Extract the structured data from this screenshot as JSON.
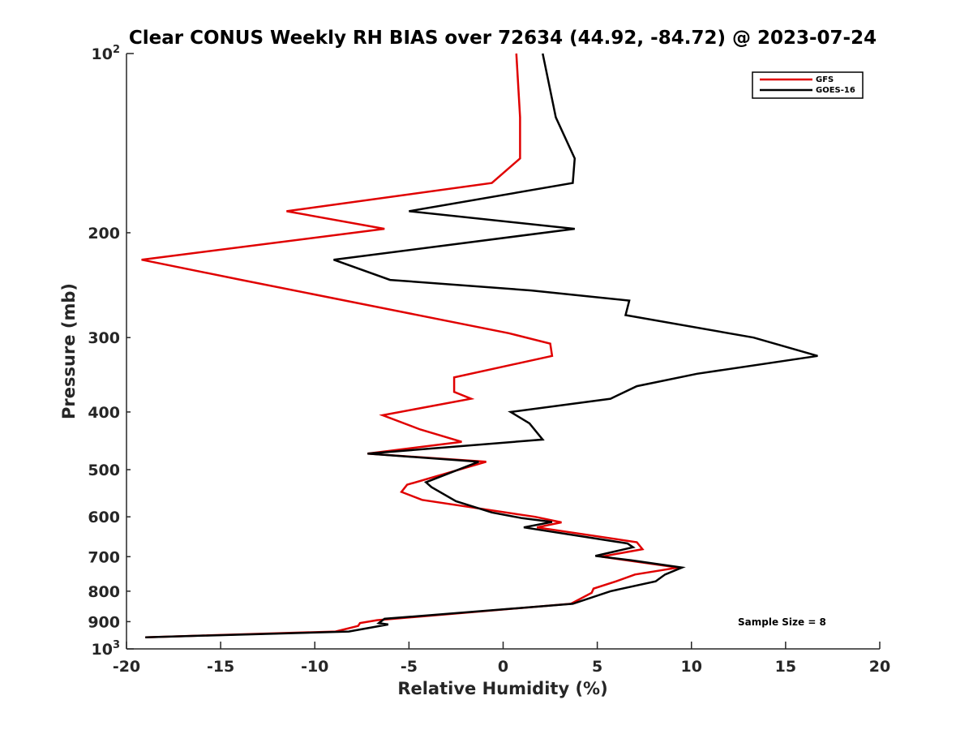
{
  "chart_data": {
    "type": "line",
    "title": "Clear CONUS Weekly RH BIAS over 72634 (44.92, -84.72) @ 2023-07-24",
    "xlabel": "Relative Humidity (%)",
    "ylabel": "Pressure (mb)",
    "xlim": [
      -20,
      20
    ],
    "ylim": [
      100,
      1000
    ],
    "yscale": "log",
    "y_reversed": true,
    "xticks": [
      -20,
      -15,
      -10,
      -5,
      0,
      5,
      10,
      15,
      20
    ],
    "xtick_labels": [
      "-20",
      "-15",
      "-10",
      "-5",
      "0",
      "5",
      "10",
      "15",
      "20"
    ],
    "yticks": [
      {
        "value": 100,
        "base": "10",
        "exp": "2"
      },
      {
        "value": 200,
        "label": "200"
      },
      {
        "value": 300,
        "label": "300"
      },
      {
        "value": 400,
        "label": "400"
      },
      {
        "value": 500,
        "label": "500"
      },
      {
        "value": 600,
        "label": "600"
      },
      {
        "value": 700,
        "label": "700"
      },
      {
        "value": 800,
        "label": "800"
      },
      {
        "value": 900,
        "label": "900"
      },
      {
        "value": 1000,
        "base": "10",
        "exp": "3"
      }
    ],
    "legend_position": "top-right",
    "annotation": "Sample Size = 8",
    "series": [
      {
        "name": "GFS",
        "color": "#e00000",
        "x": [
          0.7,
          0.9,
          0.9,
          -0.6,
          -11.5,
          -6.3,
          -19.2,
          -13.9,
          0.3,
          2.5,
          2.6,
          -2.6,
          -2.6,
          -1.7,
          -6.4,
          -4.4,
          -2.2,
          -7.2,
          -0.9,
          -5.1,
          -5.4,
          -4.3,
          1.7,
          3.1,
          1.8,
          7.1,
          7.4,
          5.2,
          9.3,
          7.0,
          6.0,
          4.8,
          4.7,
          3.6,
          -6.7,
          -7.6,
          -7.7,
          -8.9,
          -19.0
        ],
        "y": [
          100,
          128,
          150,
          165,
          184,
          197,
          222,
          240,
          295,
          307,
          322,
          350,
          370,
          380,
          405,
          428,
          449,
          470,
          485,
          530,
          545,
          562,
          600,
          613,
          625,
          662,
          680,
          700,
          730,
          750,
          770,
          792,
          805,
          840,
          895,
          905,
          915,
          935,
          956
        ]
      },
      {
        "name": "GOES-16",
        "color": "#000000",
        "x": [
          2.1,
          2.8,
          3.8,
          3.7,
          -5.0,
          3.8,
          -9.0,
          -6.0,
          1.5,
          6.7,
          6.5,
          13.3,
          16.7,
          10.3,
          7.1,
          5.7,
          0.4,
          1.4,
          2.1,
          -7.2,
          -1.3,
          -4.1,
          -3.8,
          -2.5,
          -0.6,
          1.0,
          2.6,
          1.1,
          6.6,
          6.9,
          4.9,
          6.8,
          9.5,
          8.6,
          8.1,
          5.7,
          3.7,
          -6.3,
          -6.6,
          -6.1,
          -8.2,
          -19.0
        ],
        "y": [
          100,
          128,
          150,
          165,
          184,
          197,
          222,
          240,
          250,
          260,
          275,
          300,
          322,
          345,
          362,
          380,
          400,
          418,
          445,
          470,
          485,
          525,
          535,
          565,
          590,
          603,
          612,
          625,
          665,
          675,
          698,
          710,
          730,
          750,
          770,
          800,
          840,
          890,
          905,
          910,
          935,
          956
        ]
      }
    ]
  }
}
